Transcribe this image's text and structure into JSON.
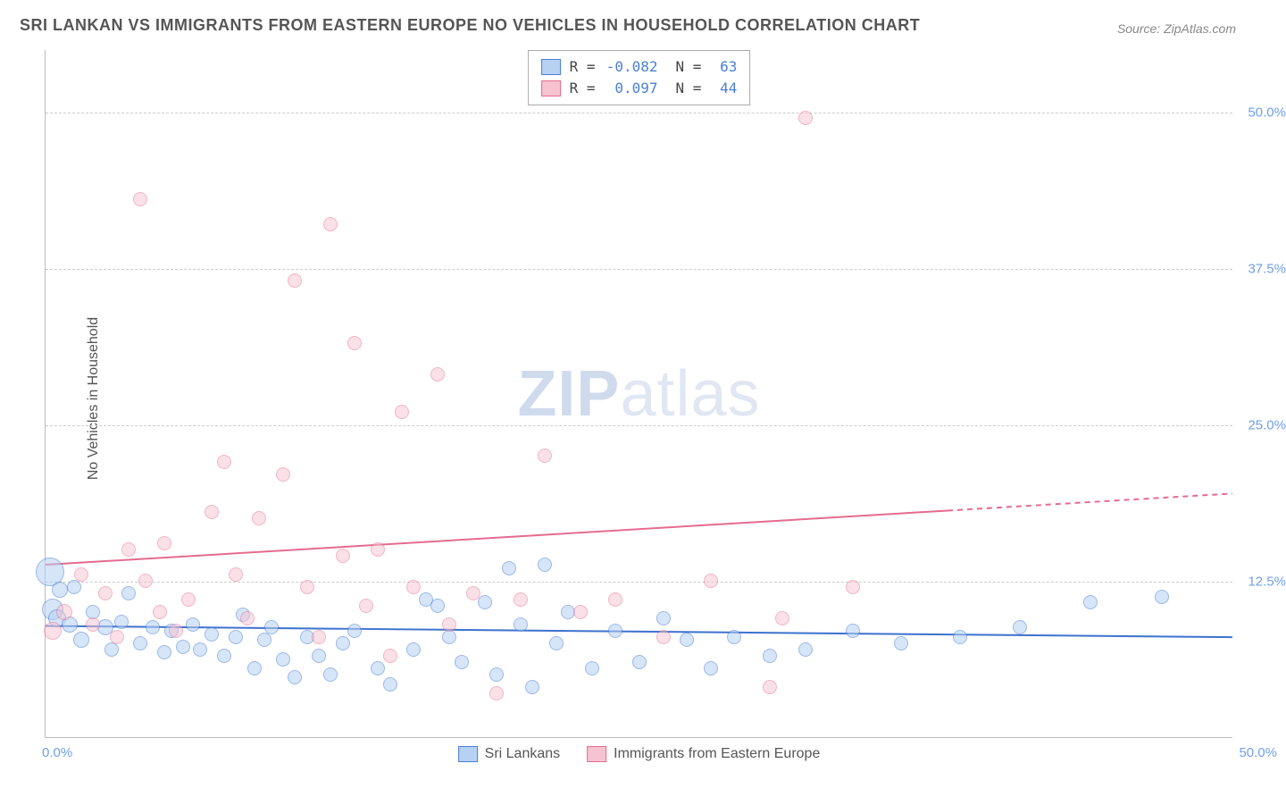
{
  "title": "SRI LANKAN VS IMMIGRANTS FROM EASTERN EUROPE NO VEHICLES IN HOUSEHOLD CORRELATION CHART",
  "source_label": "Source:",
  "source_value": "ZipAtlas.com",
  "y_axis_title": "No Vehicles in Household",
  "watermark_a": "ZIP",
  "watermark_b": "atlas",
  "chart": {
    "xlim": [
      0,
      50
    ],
    "ylim": [
      0,
      55
    ],
    "y_ticks": [
      12.5,
      25.0,
      37.5,
      50.0
    ],
    "y_tick_labels": [
      "12.5%",
      "25.0%",
      "37.5%",
      "50.0%"
    ],
    "x_tick_min": "0.0%",
    "x_tick_max": "50.0%",
    "grid_color": "#cccccc",
    "background_color": "#ffffff"
  },
  "series": [
    {
      "key": "sri",
      "name": "Sri Lankans",
      "fill": "#b6d1f2",
      "stroke": "#4a7fd8",
      "fill_opacity": 0.55,
      "R": "-0.082",
      "N": "63",
      "trend": {
        "y_start": 8.9,
        "y_end": 8.0,
        "x_start": 0,
        "x_end": 50,
        "dash_from_x": 50,
        "color": "#3d72cf",
        "width": 2
      },
      "points": [
        {
          "x": 0.2,
          "y": 13.2,
          "r": 16
        },
        {
          "x": 0.3,
          "y": 10.2,
          "r": 12
        },
        {
          "x": 0.5,
          "y": 9.5,
          "r": 10
        },
        {
          "x": 0.6,
          "y": 11.8,
          "r": 9
        },
        {
          "x": 1.0,
          "y": 9.0,
          "r": 9
        },
        {
          "x": 1.2,
          "y": 12.0,
          "r": 8
        },
        {
          "x": 1.5,
          "y": 7.8,
          "r": 9
        },
        {
          "x": 2.0,
          "y": 10.0,
          "r": 8
        },
        {
          "x": 2.5,
          "y": 8.8,
          "r": 9
        },
        {
          "x": 2.8,
          "y": 7.0,
          "r": 8
        },
        {
          "x": 3.2,
          "y": 9.2,
          "r": 8
        },
        {
          "x": 3.5,
          "y": 11.5,
          "r": 8
        },
        {
          "x": 4.0,
          "y": 7.5,
          "r": 8
        },
        {
          "x": 4.5,
          "y": 8.8,
          "r": 8
        },
        {
          "x": 5.0,
          "y": 6.8,
          "r": 8
        },
        {
          "x": 5.3,
          "y": 8.5,
          "r": 8
        },
        {
          "x": 5.8,
          "y": 7.2,
          "r": 8
        },
        {
          "x": 6.2,
          "y": 9.0,
          "r": 8
        },
        {
          "x": 6.5,
          "y": 7.0,
          "r": 8
        },
        {
          "x": 7.0,
          "y": 8.2,
          "r": 8
        },
        {
          "x": 7.5,
          "y": 6.5,
          "r": 8
        },
        {
          "x": 8.0,
          "y": 8.0,
          "r": 8
        },
        {
          "x": 8.3,
          "y": 9.8,
          "r": 8
        },
        {
          "x": 8.8,
          "y": 5.5,
          "r": 8
        },
        {
          "x": 9.2,
          "y": 7.8,
          "r": 8
        },
        {
          "x": 9.5,
          "y": 8.8,
          "r": 8
        },
        {
          "x": 10.0,
          "y": 6.2,
          "r": 8
        },
        {
          "x": 10.5,
          "y": 4.8,
          "r": 8
        },
        {
          "x": 11.0,
          "y": 8.0,
          "r": 8
        },
        {
          "x": 11.5,
          "y": 6.5,
          "r": 8
        },
        {
          "x": 12.0,
          "y": 5.0,
          "r": 8
        },
        {
          "x": 12.5,
          "y": 7.5,
          "r": 8
        },
        {
          "x": 13.0,
          "y": 8.5,
          "r": 8
        },
        {
          "x": 14.0,
          "y": 5.5,
          "r": 8
        },
        {
          "x": 14.5,
          "y": 4.2,
          "r": 8
        },
        {
          "x": 15.5,
          "y": 7.0,
          "r": 8
        },
        {
          "x": 16.0,
          "y": 11.0,
          "r": 8
        },
        {
          "x": 16.5,
          "y": 10.5,
          "r": 8
        },
        {
          "x": 17.0,
          "y": 8.0,
          "r": 8
        },
        {
          "x": 17.5,
          "y": 6.0,
          "r": 8
        },
        {
          "x": 18.5,
          "y": 10.8,
          "r": 8
        },
        {
          "x": 19.0,
          "y": 5.0,
          "r": 8
        },
        {
          "x": 19.5,
          "y": 13.5,
          "r": 8
        },
        {
          "x": 20.0,
          "y": 9.0,
          "r": 8
        },
        {
          "x": 20.5,
          "y": 4.0,
          "r": 8
        },
        {
          "x": 21.0,
          "y": 13.8,
          "r": 8
        },
        {
          "x": 21.5,
          "y": 7.5,
          "r": 8
        },
        {
          "x": 22.0,
          "y": 10.0,
          "r": 8
        },
        {
          "x": 23.0,
          "y": 5.5,
          "r": 8
        },
        {
          "x": 24.0,
          "y": 8.5,
          "r": 8
        },
        {
          "x": 25.0,
          "y": 6.0,
          "r": 8
        },
        {
          "x": 26.0,
          "y": 9.5,
          "r": 8
        },
        {
          "x": 27.0,
          "y": 7.8,
          "r": 8
        },
        {
          "x": 28.0,
          "y": 5.5,
          "r": 8
        },
        {
          "x": 29.0,
          "y": 8.0,
          "r": 8
        },
        {
          "x": 30.5,
          "y": 6.5,
          "r": 8
        },
        {
          "x": 32.0,
          "y": 7.0,
          "r": 8
        },
        {
          "x": 34.0,
          "y": 8.5,
          "r": 8
        },
        {
          "x": 36.0,
          "y": 7.5,
          "r": 8
        },
        {
          "x": 38.5,
          "y": 8.0,
          "r": 8
        },
        {
          "x": 41.0,
          "y": 8.8,
          "r": 8
        },
        {
          "x": 44.0,
          "y": 10.8,
          "r": 8
        },
        {
          "x": 47.0,
          "y": 11.2,
          "r": 8
        }
      ]
    },
    {
      "key": "ee",
      "name": "Immigrants from Eastern Europe",
      "fill": "#f7c3d1",
      "stroke": "#e56b8f",
      "fill_opacity": 0.5,
      "R": "0.097",
      "N": "44",
      "trend": {
        "y_start": 13.8,
        "y_end": 19.5,
        "x_start": 0,
        "x_end": 50,
        "dash_from_x": 38,
        "color": "#e56b8f",
        "width": 2
      },
      "points": [
        {
          "x": 0.3,
          "y": 8.5,
          "r": 10
        },
        {
          "x": 0.8,
          "y": 10.0,
          "r": 9
        },
        {
          "x": 1.5,
          "y": 13.0,
          "r": 8
        },
        {
          "x": 2.0,
          "y": 9.0,
          "r": 8
        },
        {
          "x": 2.5,
          "y": 11.5,
          "r": 8
        },
        {
          "x": 3.0,
          "y": 8.0,
          "r": 8
        },
        {
          "x": 3.5,
          "y": 15.0,
          "r": 8
        },
        {
          "x": 4.0,
          "y": 43.0,
          "r": 8
        },
        {
          "x": 4.2,
          "y": 12.5,
          "r": 8
        },
        {
          "x": 4.8,
          "y": 10.0,
          "r": 8
        },
        {
          "x": 5.0,
          "y": 15.5,
          "r": 8
        },
        {
          "x": 5.5,
          "y": 8.5,
          "r": 8
        },
        {
          "x": 6.0,
          "y": 11.0,
          "r": 8
        },
        {
          "x": 7.0,
          "y": 18.0,
          "r": 8
        },
        {
          "x": 7.5,
          "y": 22.0,
          "r": 8
        },
        {
          "x": 8.0,
          "y": 13.0,
          "r": 8
        },
        {
          "x": 8.5,
          "y": 9.5,
          "r": 8
        },
        {
          "x": 9.0,
          "y": 17.5,
          "r": 8
        },
        {
          "x": 10.0,
          "y": 21.0,
          "r": 8
        },
        {
          "x": 10.5,
          "y": 36.5,
          "r": 8
        },
        {
          "x": 11.0,
          "y": 12.0,
          "r": 8
        },
        {
          "x": 11.5,
          "y": 8.0,
          "r": 8
        },
        {
          "x": 12.0,
          "y": 41.0,
          "r": 8
        },
        {
          "x": 12.5,
          "y": 14.5,
          "r": 8
        },
        {
          "x": 13.0,
          "y": 31.5,
          "r": 8
        },
        {
          "x": 13.5,
          "y": 10.5,
          "r": 8
        },
        {
          "x": 14.0,
          "y": 15.0,
          "r": 8
        },
        {
          "x": 14.5,
          "y": 6.5,
          "r": 8
        },
        {
          "x": 15.0,
          "y": 26.0,
          "r": 8
        },
        {
          "x": 15.5,
          "y": 12.0,
          "r": 8
        },
        {
          "x": 16.5,
          "y": 29.0,
          "r": 8
        },
        {
          "x": 17.0,
          "y": 9.0,
          "r": 8
        },
        {
          "x": 18.0,
          "y": 11.5,
          "r": 8
        },
        {
          "x": 19.0,
          "y": 3.5,
          "r": 8
        },
        {
          "x": 20.0,
          "y": 11.0,
          "r": 8
        },
        {
          "x": 21.0,
          "y": 22.5,
          "r": 8
        },
        {
          "x": 22.5,
          "y": 10.0,
          "r": 8
        },
        {
          "x": 24.0,
          "y": 11.0,
          "r": 8
        },
        {
          "x": 26.0,
          "y": 8.0,
          "r": 8
        },
        {
          "x": 28.0,
          "y": 12.5,
          "r": 8
        },
        {
          "x": 30.5,
          "y": 4.0,
          "r": 8
        },
        {
          "x": 32.0,
          "y": 49.5,
          "r": 8
        },
        {
          "x": 34.0,
          "y": 12.0,
          "r": 8
        },
        {
          "x": 31.0,
          "y": 9.5,
          "r": 8
        }
      ]
    }
  ],
  "stats_labels": {
    "R": "R =",
    "N": "N ="
  },
  "bottom_legend": [
    {
      "label": "Sri Lankans",
      "series": "sri"
    },
    {
      "label": "Immigrants from Eastern Europe",
      "series": "ee"
    }
  ]
}
